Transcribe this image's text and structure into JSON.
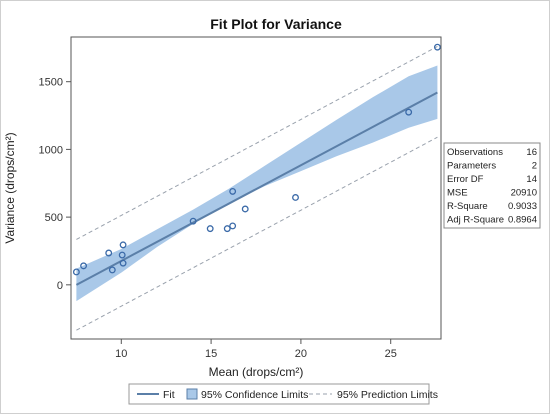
{
  "chart_data": {
    "type": "scatter",
    "title": "Fit Plot for Variance",
    "xlabel": "Mean (drops/cm²)",
    "ylabel": "Variance (drops/cm²)",
    "xlim": [
      7.2,
      27.8
    ],
    "ylim": [
      -400,
      1830
    ],
    "x_ticks": [
      10,
      15,
      20,
      25
    ],
    "y_ticks": [
      0,
      500,
      1000,
      1500
    ],
    "x_tick_labels": [
      "10",
      "15",
      "20",
      "25"
    ],
    "y_tick_labels": [
      "0",
      "500",
      "1000",
      "1500"
    ],
    "grid": false,
    "points": [
      {
        "x": 7.5,
        "y": 95
      },
      {
        "x": 7.9,
        "y": 140
      },
      {
        "x": 9.3,
        "y": 235
      },
      {
        "x": 9.5,
        "y": 110
      },
      {
        "x": 10.05,
        "y": 220
      },
      {
        "x": 10.1,
        "y": 295
      },
      {
        "x": 10.1,
        "y": 160
      },
      {
        "x": 14.0,
        "y": 470
      },
      {
        "x": 14.95,
        "y": 415
      },
      {
        "x": 15.9,
        "y": 415
      },
      {
        "x": 16.2,
        "y": 435
      },
      {
        "x": 16.2,
        "y": 690
      },
      {
        "x": 16.9,
        "y": 560
      },
      {
        "x": 19.7,
        "y": 645
      },
      {
        "x": 26.0,
        "y": 1275
      },
      {
        "x": 27.6,
        "y": 1755
      }
    ],
    "fit": {
      "x": [
        7.5,
        27.6
      ],
      "y": [
        0,
        1420
      ]
    },
    "confidence_band": {
      "x": [
        7.5,
        10,
        12,
        14,
        16,
        18,
        20,
        22,
        24,
        26,
        27.6
      ],
      "lower": [
        -120,
        90,
        280,
        450,
        600,
        730,
        840,
        950,
        1050,
        1160,
        1225
      ],
      "upper": [
        120,
        265,
        410,
        555,
        710,
        880,
        1050,
        1220,
        1385,
        1540,
        1620
      ]
    },
    "prediction_band": {
      "x": [
        7.5,
        27.6
      ],
      "lower": [
        -335,
        1090
      ],
      "upper": [
        335,
        1760
      ]
    },
    "stats": [
      {
        "label": "Observations",
        "value": "16"
      },
      {
        "label": "Parameters",
        "value": "2"
      },
      {
        "label": "Error DF",
        "value": "14"
      },
      {
        "label": "MSE",
        "value": "20910"
      },
      {
        "label": "R-Square",
        "value": "0.9033"
      },
      {
        "label": "Adj R-Square",
        "value": "0.8964"
      }
    ],
    "legend": {
      "placement": "bottom",
      "items": [
        {
          "kind": "line",
          "label": "Fit"
        },
        {
          "kind": "band",
          "label": "95% Confidence Limits"
        },
        {
          "kind": "dashed",
          "label": "95% Prediction Limits"
        }
      ]
    },
    "colors": {
      "fit": "#5b7fa8",
      "band": "#a9c8e8",
      "prediction": "#9aa2ad",
      "marker": "#3b6aa8"
    }
  }
}
